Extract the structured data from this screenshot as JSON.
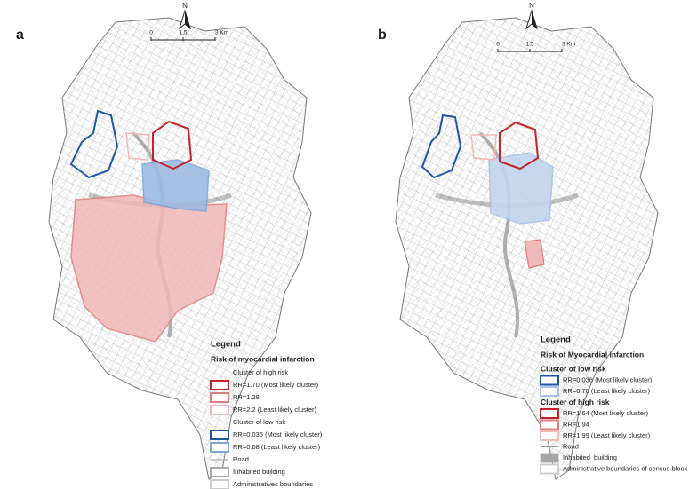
{
  "panels": [
    {
      "label": "a",
      "north": "N",
      "scale": [
        "0",
        "1,5",
        "3 Km"
      ],
      "legend": {
        "title": "Legend",
        "subtitle": "Risk of myocardial infarction",
        "items": [
          {
            "label": "Cluster of high risk",
            "kind": "heading"
          },
          {
            "label": "RR=1.70 (Most likely cluster)",
            "kind": "box",
            "color": "#c0262c"
          },
          {
            "label": "RR=1.28",
            "kind": "box",
            "color": "#e07d7f"
          },
          {
            "label": "RR=2.2 (Least likely cluster)",
            "kind": "box",
            "color": "#f2b8b8"
          },
          {
            "label": "Cluster of low risk",
            "kind": "heading"
          },
          {
            "label": "RR=0.036 (Most likely cluster)",
            "kind": "box",
            "color": "#2156a6"
          },
          {
            "label": "RR=0.68 (Least likely cluster)",
            "kind": "box",
            "color": "#7fa6d8"
          },
          {
            "label": "Road",
            "kind": "line",
            "color": "#999999"
          },
          {
            "label": "Inhabited building",
            "kind": "box",
            "color": "#aaaaaa"
          },
          {
            "label": "Administratives boundaries",
            "kind": "box",
            "color": "#cccccc"
          }
        ]
      }
    },
    {
      "label": "b",
      "north": "N",
      "scale": [
        "0",
        "1,5",
        "3 Km"
      ],
      "legend": {
        "title": "Legend",
        "subtitle": "Risk of Myocardial infarction",
        "items": [
          {
            "label": "Cluster of low risk",
            "kind": "heading-bold"
          },
          {
            "label": "RR=0.036 (Most likely cluster)",
            "kind": "box",
            "color": "#2156a6"
          },
          {
            "label": "RR=0.70 (Least likely cluster)",
            "kind": "box",
            "color": "#a9c2e6"
          },
          {
            "label": "Cluster of high risk",
            "kind": "heading-bold"
          },
          {
            "label": "RR=1.64 (Most likely cluster)",
            "kind": "box",
            "color": "#c0262c"
          },
          {
            "label": "RR=1.94",
            "kind": "box",
            "color": "#e07d7f"
          },
          {
            "label": "RR=1.99 (Least likely cluster)",
            "kind": "box",
            "color": "#f2b8b8"
          },
          {
            "label": "Road",
            "kind": "line",
            "color": "#999999"
          },
          {
            "label": "Inhabited_building",
            "kind": "filled",
            "color": "#a6a6a6"
          },
          {
            "label": "Administrative boundaries of census block",
            "kind": "box",
            "color": "#cccccc"
          }
        ]
      }
    }
  ]
}
